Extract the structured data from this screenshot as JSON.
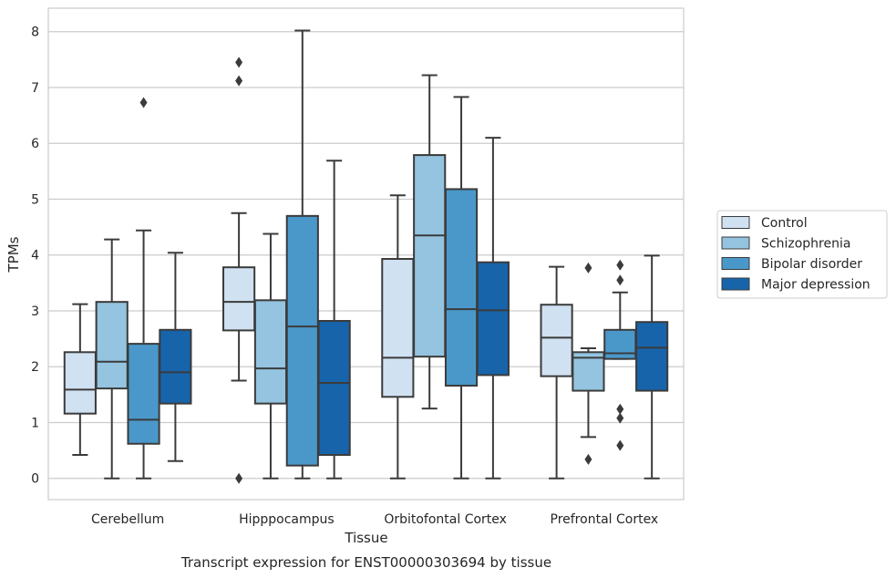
{
  "chart_data": {
    "type": "box",
    "caption": "Transcript expression for ENST00000303694 by tissue",
    "xlabel": "Tissue",
    "ylabel": "TPMs",
    "ylim": [
      -0.38,
      8.42
    ],
    "yticks": [
      0,
      1,
      2,
      3,
      4,
      5,
      6,
      7,
      8
    ],
    "grid": "horizontal",
    "legend_position": "right",
    "categories": [
      "Cerebellum",
      "Hipppocampus",
      "Orbitofontal Cortex",
      "Prefrontal Cortex"
    ],
    "series": [
      {
        "name": "Control",
        "color": "#d0e1f2",
        "boxes": [
          {
            "whislo": 0.42,
            "q1": 1.16,
            "med": 1.59,
            "q3": 2.26,
            "whishi": 3.12,
            "fliers": []
          },
          {
            "whislo": 1.75,
            "q1": 2.65,
            "med": 3.16,
            "q3": 3.78,
            "whishi": 4.75,
            "fliers": [
              0.0,
              7.12,
              7.45
            ]
          },
          {
            "whislo": 0.0,
            "q1": 1.46,
            "med": 2.16,
            "q3": 3.93,
            "whishi": 5.07,
            "fliers": []
          },
          {
            "whislo": 0.0,
            "q1": 1.83,
            "med": 2.52,
            "q3": 3.11,
            "whishi": 3.79,
            "fliers": []
          }
        ]
      },
      {
        "name": "Schizophrenia",
        "color": "#94c4df",
        "boxes": [
          {
            "whislo": 0.0,
            "q1": 1.61,
            "med": 2.09,
            "q3": 3.16,
            "whishi": 4.28,
            "fliers": []
          },
          {
            "whislo": 0.0,
            "q1": 1.34,
            "med": 1.97,
            "q3": 3.19,
            "whishi": 4.38,
            "fliers": []
          },
          {
            "whislo": 1.25,
            "q1": 2.18,
            "med": 4.35,
            "q3": 5.79,
            "whishi": 7.22,
            "fliers": []
          },
          {
            "whislo": 0.74,
            "q1": 1.57,
            "med": 2.16,
            "q3": 2.26,
            "whishi": 2.33,
            "fliers": [
              0.34,
              3.77
            ]
          }
        ]
      },
      {
        "name": "Bipolar disorder",
        "color": "#4a98c9",
        "boxes": [
          {
            "whislo": 0.0,
            "q1": 0.62,
            "med": 1.05,
            "q3": 2.41,
            "whishi": 4.44,
            "fliers": [
              6.73
            ]
          },
          {
            "whislo": 0.0,
            "q1": 0.23,
            "med": 2.72,
            "q3": 4.7,
            "whishi": 8.02,
            "fliers": []
          },
          {
            "whislo": 0.0,
            "q1": 1.66,
            "med": 3.03,
            "q3": 5.18,
            "whishi": 6.83,
            "fliers": []
          },
          {
            "whislo": 2.14,
            "q1": 2.14,
            "med": 2.24,
            "q3": 2.66,
            "whishi": 3.33,
            "fliers": [
              0.59,
              1.08,
              1.24,
              3.55,
              3.82
            ]
          }
        ]
      },
      {
        "name": "Major depression",
        "color": "#1764ab",
        "boxes": [
          {
            "whislo": 0.31,
            "q1": 1.34,
            "med": 1.9,
            "q3": 2.66,
            "whishi": 4.04,
            "fliers": []
          },
          {
            "whislo": 0.0,
            "q1": 0.42,
            "med": 1.71,
            "q3": 2.82,
            "whishi": 5.69,
            "fliers": []
          },
          {
            "whislo": 0.0,
            "q1": 1.85,
            "med": 3.01,
            "q3": 3.87,
            "whishi": 6.1,
            "fliers": []
          },
          {
            "whislo": 0.0,
            "q1": 1.57,
            "med": 2.34,
            "q3": 2.8,
            "whishi": 3.99,
            "fliers": []
          }
        ]
      }
    ]
  }
}
